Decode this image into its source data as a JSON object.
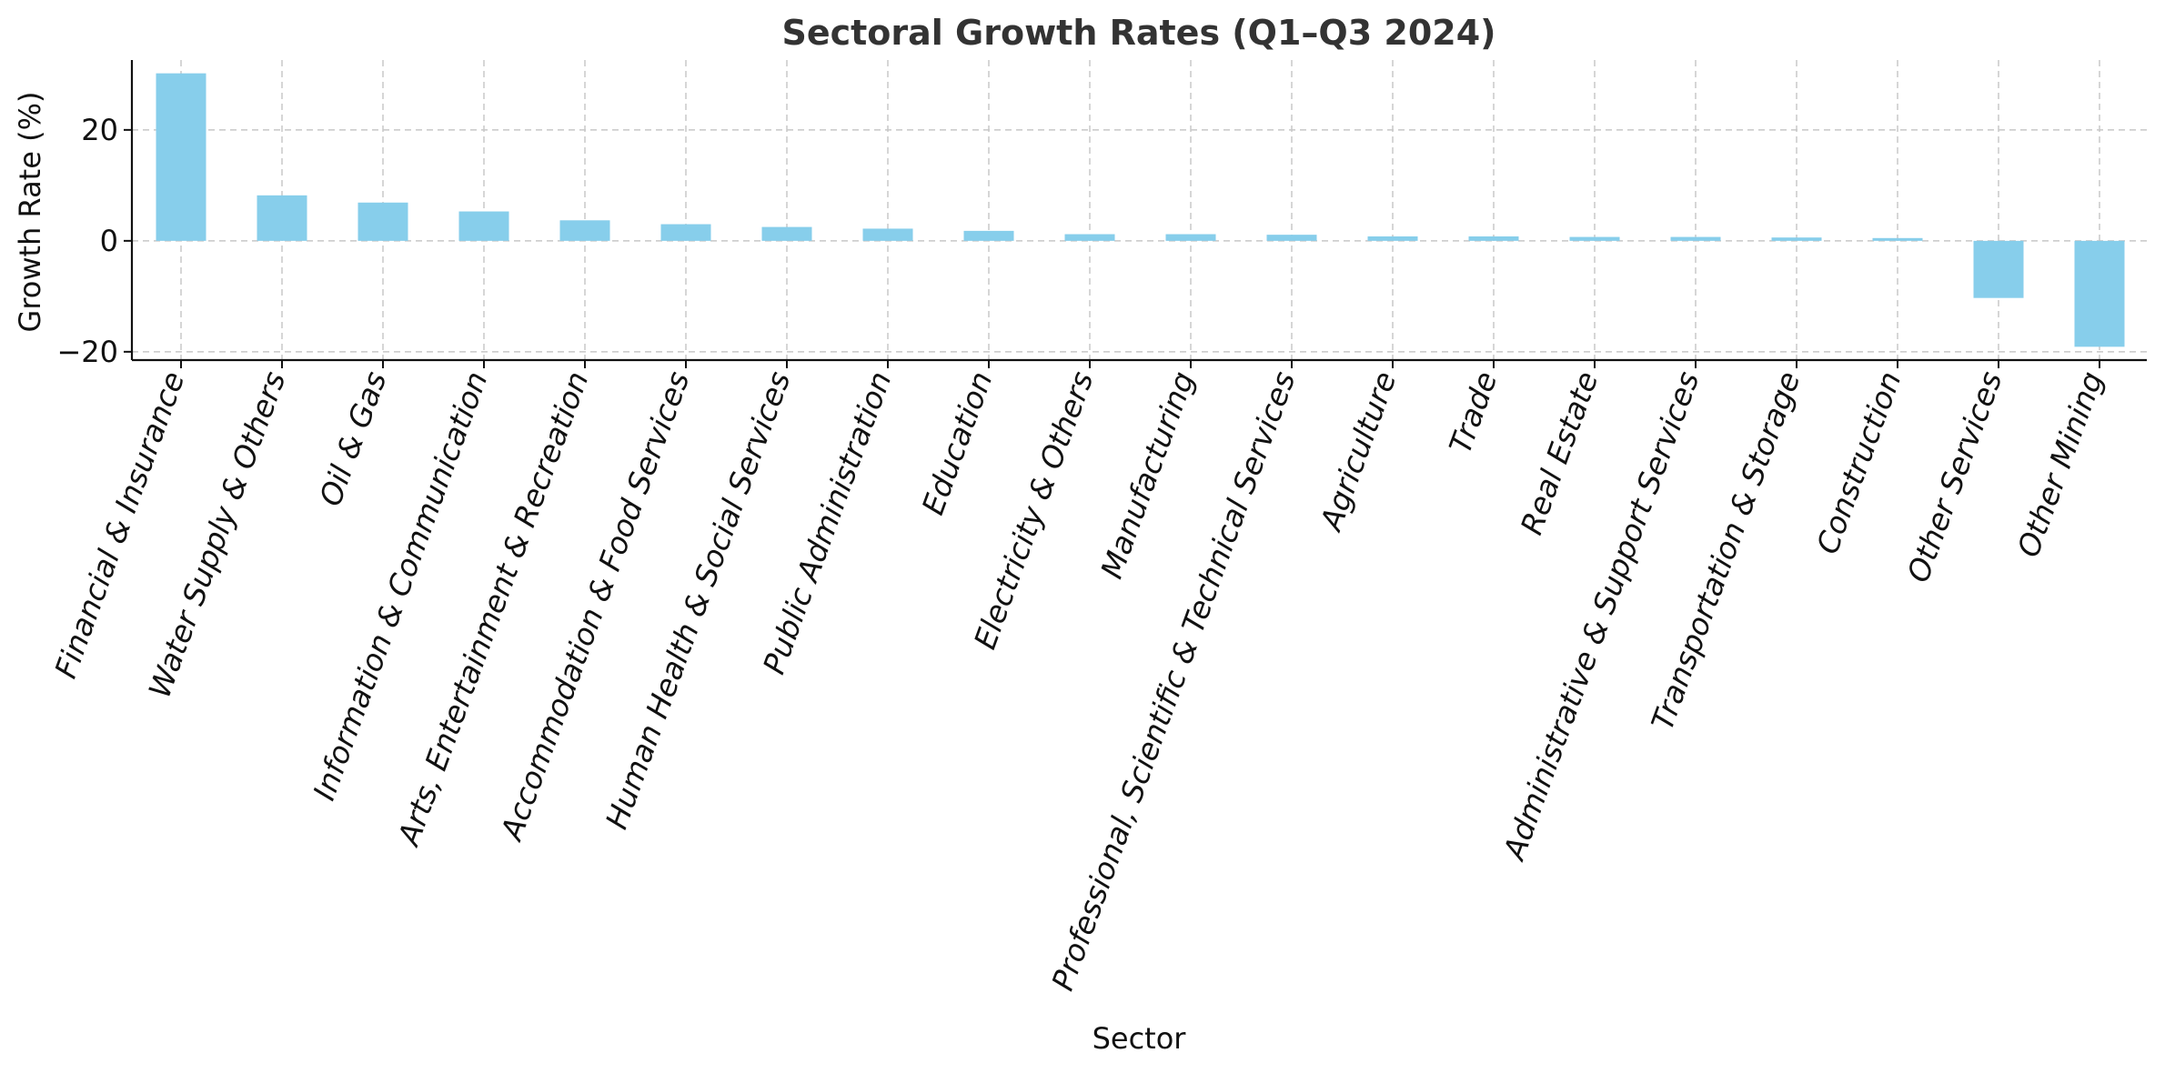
{
  "chart_data": {
    "type": "bar",
    "title": "Sectoral Growth Rates (Q1–Q3 2024)",
    "xlabel": "Sector",
    "ylabel": "Growth Rate (%)",
    "ylim": [
      -21.5,
      32.6
    ],
    "yticks": [
      -20,
      0,
      20
    ],
    "ytick_labels": [
      "−20",
      "0",
      "20"
    ],
    "grid": true,
    "bar_color": "#87CEEB",
    "categories": [
      "Financial & Insurance",
      "Water Supply & Others",
      "Oil & Gas",
      "Information & Communication",
      "Arts, Entertainment & Recreation",
      "Accommodation & Food Services",
      "Human Health & Social Services",
      "Public Administration",
      "Education",
      "Electricity & Others",
      "Manufacturing",
      "Professional, Scientific & Technical Services",
      "Agriculture",
      "Trade",
      "Real Estate",
      "Administrative & Support Services",
      "Transportation & Storage",
      "Construction",
      "Other Services",
      "Other Mining"
    ],
    "values": [
      30.2,
      8.2,
      6.9,
      5.3,
      3.7,
      3.0,
      2.5,
      2.2,
      1.8,
      1.2,
      1.2,
      1.1,
      0.8,
      0.8,
      0.7,
      0.7,
      0.6,
      0.5,
      -10.3,
      -19.1
    ]
  }
}
